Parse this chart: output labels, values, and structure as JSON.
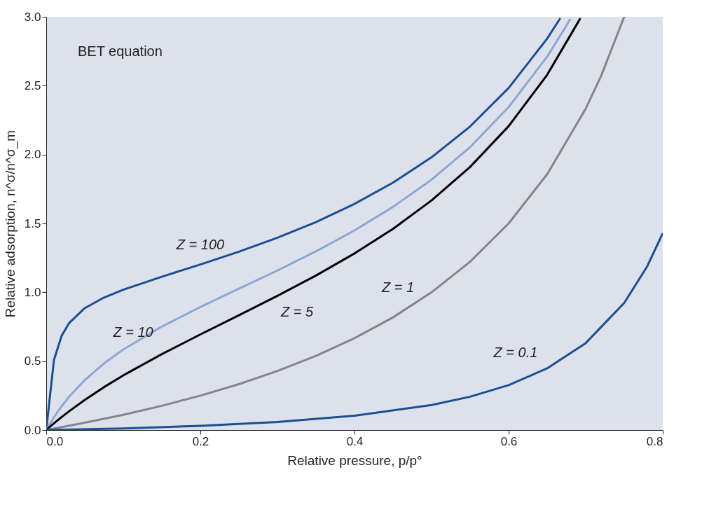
{
  "chart_data": {
    "type": "line",
    "xlabel": "Relative pressure, p/p°",
    "ylabel": "Relative adsorption, n^σ/n^σ_m",
    "xlim": [
      0,
      0.8
    ],
    "ylim": [
      0,
      3.0
    ],
    "xticks": [
      {
        "value": 0,
        "label": "0.0"
      },
      0.2,
      0.4,
      0.6,
      0.8
    ],
    "yticks": [
      {
        "value": 0,
        "label": "0.0"
      },
      0.5,
      {
        "value": 1,
        "label": "1.0"
      },
      1.5,
      {
        "value": 2,
        "label": "2.0"
      },
      2.5,
      {
        "value": 3,
        "label": "3.0"
      }
    ],
    "grid": false,
    "marker": "none",
    "line_style": "solid",
    "series": [
      {
        "color": "#1b4f8f",
        "x": [
          0,
          0.01,
          0.02,
          0.03,
          0.05,
          0.075,
          0.1,
          0.15,
          0.2,
          0.25,
          0.3,
          0.35,
          0.4,
          0.45,
          0.5,
          0.55,
          0.6,
          0.65,
          0.667
        ],
        "values": [
          0,
          0.508,
          0.685,
          0.779,
          0.885,
          0.962,
          1.019,
          1.113,
          1.202,
          1.295,
          1.396,
          1.51,
          1.642,
          1.796,
          1.98,
          2.204,
          2.483,
          2.842,
          2.99
        ]
      },
      {
        "color": "#8ea6d0",
        "x": [
          0,
          0.01,
          0.02,
          0.03,
          0.05,
          0.075,
          0.1,
          0.15,
          0.2,
          0.25,
          0.3,
          0.35,
          0.4,
          0.45,
          0.5,
          0.55,
          0.6,
          0.65,
          0.675,
          0.68
        ],
        "values": [
          0,
          0.093,
          0.173,
          0.244,
          0.363,
          0.484,
          0.585,
          0.751,
          0.893,
          1.026,
          1.158,
          1.297,
          1.449,
          1.62,
          1.818,
          2.054,
          2.344,
          2.711,
          2.936,
          2.985
        ]
      },
      {
        "color": "#000000",
        "x": [
          0,
          0.01,
          0.02,
          0.03,
          0.05,
          0.075,
          0.1,
          0.15,
          0.2,
          0.25,
          0.3,
          0.35,
          0.4,
          0.45,
          0.5,
          0.55,
          0.6,
          0.65,
          0.69,
          0.693
        ],
        "values": [
          0,
          0.049,
          0.095,
          0.138,
          0.219,
          0.312,
          0.397,
          0.551,
          0.694,
          0.833,
          0.974,
          1.122,
          1.282,
          1.461,
          1.667,
          1.91,
          2.206,
          2.579,
          2.96,
          2.99
        ]
      },
      {
        "color": "#858585",
        "x": [
          0,
          0.05,
          0.1,
          0.15,
          0.2,
          0.25,
          0.3,
          0.35,
          0.4,
          0.45,
          0.5,
          0.55,
          0.6,
          0.65,
          0.7,
          0.72,
          0.75
        ],
        "values": [
          0,
          0.053,
          0.111,
          0.176,
          0.25,
          0.333,
          0.429,
          0.538,
          0.667,
          0.818,
          1.0,
          1.222,
          1.5,
          1.857,
          2.333,
          2.571,
          3.0
        ]
      },
      {
        "color": "#1b4f8f",
        "x": [
          0,
          0.1,
          0.2,
          0.3,
          0.4,
          0.5,
          0.55,
          0.6,
          0.65,
          0.7,
          0.75,
          0.78,
          0.8
        ],
        "values": [
          0,
          0.012,
          0.031,
          0.059,
          0.104,
          0.182,
          0.242,
          0.326,
          0.448,
          0.631,
          0.923,
          1.19,
          1.429
        ]
      }
    ],
    "annotations": [
      "BET equation",
      {
        "text": "Z = 100",
        "x": 0.2,
        "y": 1.2
      },
      {
        "text": "Z = 10",
        "x": 0.1,
        "y": 0.585
      },
      {
        "text": "Z = 5",
        "x": 0.3,
        "y": 0.974
      },
      {
        "text": "Z = 1",
        "x": 0.5,
        "y": 1.0
      },
      {
        "text": "Z = 0.1",
        "x": 0.65,
        "y": 0.448
      }
    ]
  }
}
